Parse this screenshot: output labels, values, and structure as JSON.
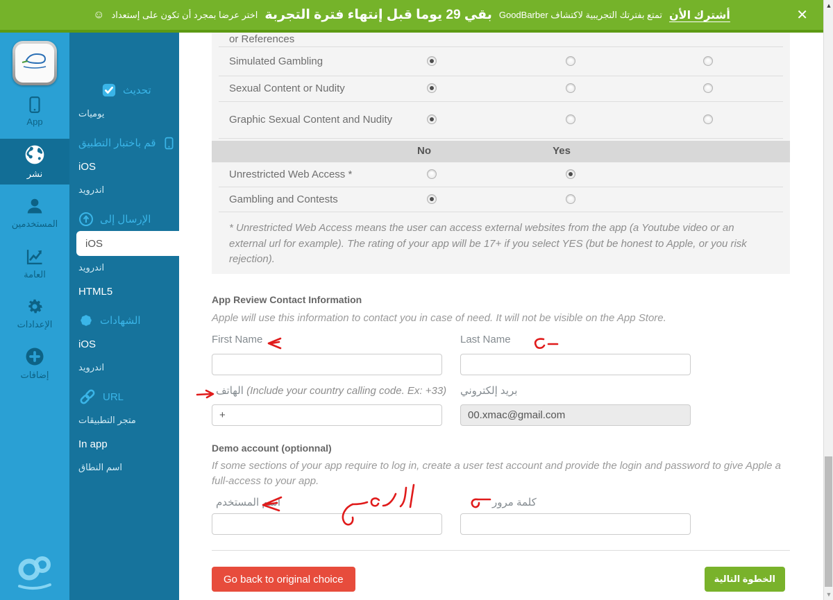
{
  "banner": {
    "subscribe_link": "أشترك الأن",
    "message_1": "تمتع بفترتك التجريبية لاكتشاف GoodBarber",
    "highlight": "بقي 29 يوما قبل إنتهاء فترة التجربة",
    "message_2": "اختر عرضا بمجرد أن تكون على إستعداد",
    "smiley": "☺",
    "close": "✕"
  },
  "primary_nav": {
    "items": [
      {
        "id": "app",
        "label": "App",
        "icon": "phone-icon",
        "active": false
      },
      {
        "id": "publish",
        "label": "نشر",
        "icon": "globe-icon",
        "active": true
      },
      {
        "id": "users",
        "label": "المستخدمين",
        "icon": "user-icon",
        "active": false
      },
      {
        "id": "stats",
        "label": "العامة",
        "icon": "chart-icon",
        "active": false
      },
      {
        "id": "settings",
        "label": "الإعدادات",
        "icon": "gear-icon",
        "active": false
      },
      {
        "id": "addons",
        "label": "إضافات",
        "icon": "plus-circle-icon",
        "active": false
      }
    ]
  },
  "secondary_nav": {
    "groups": [
      {
        "header": "تحديث",
        "icon": "check-square-icon",
        "icon_position": "before",
        "items": [
          {
            "label": "يوميات",
            "active": false
          }
        ]
      },
      {
        "header": "قم باختبار التطبيق",
        "icon": "phone-outline-icon",
        "icon_position": "after",
        "items": [
          {
            "label": "iOS",
            "active": false
          },
          {
            "label": "اندرويد",
            "active": false
          }
        ]
      },
      {
        "header": "الإرسال إلى",
        "icon": "upload-circle-icon",
        "icon_position": "before",
        "items": [
          {
            "label": "iOS",
            "active": true
          },
          {
            "label": "اندرويد",
            "active": false
          },
          {
            "label": "HTML5",
            "active": false
          }
        ]
      },
      {
        "header": "الشهادات",
        "icon": "badge-icon",
        "icon_position": "before",
        "items": [
          {
            "label": "iOS",
            "active": false
          },
          {
            "label": "اندرويد",
            "active": false
          }
        ]
      },
      {
        "header": "URL",
        "icon": "link-icon",
        "icon_position": "before",
        "items": [
          {
            "label": "متجر التطبيقات",
            "active": false
          },
          {
            "label": "In app",
            "active": false
          },
          {
            "label": "اسم النطاق",
            "active": false
          }
        ]
      }
    ]
  },
  "rating_table": {
    "partial_row_label": "or References",
    "three_col_rows": [
      {
        "label": "Simulated Gambling",
        "selected": 0
      },
      {
        "label": "Sexual Content or Nudity",
        "selected": 0
      },
      {
        "label": "Graphic Sexual Content and Nudity",
        "selected": 0
      }
    ],
    "two_col_header": {
      "no": "No",
      "yes": "Yes"
    },
    "two_col_rows": [
      {
        "label": "Unrestricted Web Access *",
        "selected": 1
      },
      {
        "label": "Gambling and Contests",
        "selected": 0
      }
    ],
    "footnote": "* Unrestricted Web Access means the user can access external websites from the app (a Youtube video or an external url for example). The rating of your app will be 17+ if you select YES (but be honest to Apple, or you risk rejection)."
  },
  "contact_section": {
    "title": "App Review Contact Information",
    "description": "Apple will use this information to contact you in case of need. It will not be visible on the App Store.",
    "first_name_label": "First Name",
    "last_name_label": "Last Name",
    "phone_label": "الهاتف",
    "phone_hint": "(Include your country calling code. Ex: +33)",
    "phone_value": "+",
    "email_label": "بريد إلكتروني",
    "email_value": "00.xmac@gmail.com"
  },
  "demo_section": {
    "title": "Demo account (optionnal)",
    "description": "If some sections of your app require to log in, create a user test account and provide the login and password to give Apple a full-access to your app.",
    "username_label": "اسم المستخدم",
    "password_label": "كلمة مرور"
  },
  "footer": {
    "back_button": "Go back to original choice",
    "next_button": "الخطوة التالية"
  },
  "annotations": {
    "note": "red hand-drawn reviewer marks",
    "items": [
      "left-arrow beside First Name",
      "curl-and-dash beside Last Name",
      "right-arrow before phone label",
      "left-arrow beside username label",
      "handwritten Arabic scribble above username field",
      "dash-and-curl beside password label"
    ]
  },
  "colors": {
    "banner_green": "#75b32a",
    "sidebar_blue": "#2aa0d4",
    "sidebar_teal": "#16739c",
    "accent_cyan": "#3ab5e8",
    "button_red": "#e74c3c",
    "button_green": "#79b22b"
  }
}
